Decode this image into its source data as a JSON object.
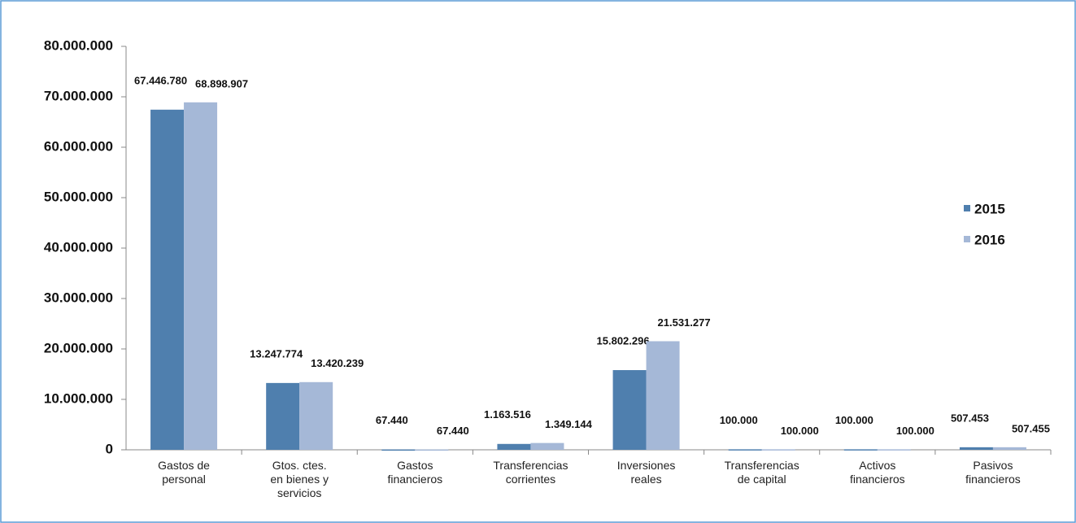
{
  "chart_data": {
    "type": "bar",
    "categories": [
      [
        "Gastos de",
        "personal"
      ],
      [
        "Gtos. ctes.",
        "en bienes y",
        "servicios"
      ],
      [
        "Gastos",
        "financieros"
      ],
      [
        "Transferencias",
        "corrientes"
      ],
      [
        "Inversiones",
        "reales"
      ],
      [
        "Transferencias",
        "de capital"
      ],
      [
        "Activos",
        "financieros"
      ],
      [
        "Pasivos",
        "financieros"
      ]
    ],
    "series": [
      {
        "name": "2015",
        "color": "#4f7fae",
        "values": [
          67446780,
          13247774,
          67440,
          1163516,
          15802296,
          100000,
          100000,
          507453
        ],
        "value_labels": [
          "67.446.780",
          "13.247.774",
          "67.440",
          "1.163.516",
          "15.802.296",
          "100.000",
          "100.000",
          "507.453"
        ]
      },
      {
        "name": "2016",
        "color": "#a5b8d7",
        "values": [
          68898907,
          13420239,
          67440,
          1349144,
          21531277,
          100000,
          100000,
          507455
        ],
        "value_labels": [
          "68.898.907",
          "13.420.239",
          "67.440",
          "1.349.144",
          "21.531.277",
          "100.000",
          "100.000",
          "507.455"
        ]
      }
    ],
    "ylim": [
      0,
      80000000
    ],
    "yticks": [
      0,
      {
        "value": 10000000,
        "label": "10.000.000"
      },
      {
        "value": 20000000,
        "label": "20.000.000"
      },
      {
        "value": 30000000,
        "label": "30.000.000"
      },
      {
        "value": 40000000,
        "label": "40.000.000"
      },
      {
        "value": 50000000,
        "label": "50.000.000"
      },
      {
        "value": 60000000,
        "label": "60.000.000"
      },
      {
        "value": 70000000,
        "label": "70.000.000"
      },
      {
        "value": 80000000,
        "label": "80.000.000"
      }
    ],
    "grid": false,
    "legend": "right"
  }
}
